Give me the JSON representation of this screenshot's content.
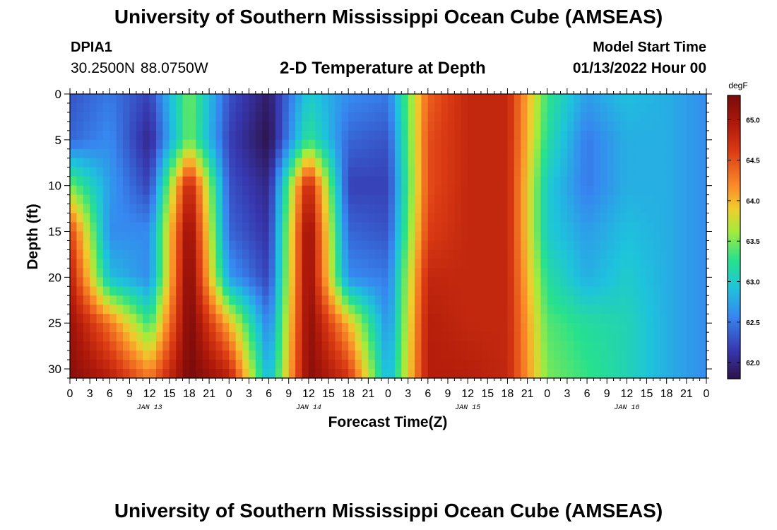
{
  "header": {
    "title": "University of Southern Mississippi Ocean Cube (AMSEAS)",
    "station": "DPIA1",
    "coordinates": "30.2500N  88.0750W",
    "subtitle": "2-D Temperature at Depth",
    "model_start_label": "Model Start Time",
    "model_start_value": "01/13/2022 Hour 00"
  },
  "footer": {
    "title": "University of Southern Mississippi Ocean Cube (AMSEAS)"
  },
  "chart_data": {
    "type": "heatmap",
    "title": "2-D Temperature at Depth",
    "xlabel": "Forecast Time(Z)",
    "ylabel": "Depth (ft)",
    "x_range_hours": [
      0,
      96
    ],
    "x_tick_step_hours": 3,
    "x_tick_labels": [
      "0",
      "3",
      "6",
      "9",
      "12",
      "15",
      "18",
      "21",
      "0",
      "3",
      "6",
      "9",
      "12",
      "15",
      "18",
      "21",
      "0",
      "3",
      "6",
      "9",
      "12",
      "15",
      "18",
      "21",
      "0",
      "3",
      "6",
      "9",
      "12",
      "15",
      "18",
      "21",
      "0"
    ],
    "day_labels": [
      {
        "label": "JAN 13",
        "hour": 12
      },
      {
        "label": "JAN 14",
        "hour": 36
      },
      {
        "label": "JAN 15",
        "hour": 60
      },
      {
        "label": "JAN 16",
        "hour": 84
      }
    ],
    "ylim": [
      0,
      31
    ],
    "y_ticks": [
      0,
      5,
      10,
      15,
      20,
      25,
      30
    ],
    "colorbar": {
      "unit": "degF",
      "range": [
        61.8,
        65.3
      ],
      "ticks": [
        62.0,
        62.5,
        63.0,
        63.5,
        64.0,
        64.5,
        65.0
      ]
    },
    "depth_levels_ft": [
      0,
      5,
      10,
      15,
      20,
      25,
      31
    ],
    "time_hours": [
      0,
      6,
      12,
      18,
      24,
      30,
      36,
      42,
      48,
      54,
      60,
      66,
      72,
      78,
      84,
      90,
      96
    ],
    "temperature_degF": [
      [
        62.3,
        62.5,
        62.2,
        63.5,
        62.3,
        61.9,
        63.0,
        62.6,
        62.5,
        64.4,
        64.8,
        64.8,
        63.3,
        62.7,
        62.9,
        62.8,
        62.6
      ],
      [
        62.4,
        62.6,
        62.0,
        63.5,
        62.2,
        61.8,
        63.3,
        62.4,
        62.3,
        64.5,
        64.8,
        64.8,
        63.2,
        62.5,
        62.8,
        62.8,
        62.6
      ],
      [
        63.5,
        62.7,
        62.2,
        64.9,
        62.3,
        62.0,
        64.9,
        62.2,
        62.2,
        64.5,
        64.8,
        64.8,
        63.0,
        62.5,
        62.8,
        62.8,
        62.6
      ],
      [
        64.6,
        62.6,
        62.6,
        65.2,
        62.4,
        62.1,
        65.2,
        62.4,
        62.3,
        64.6,
        64.8,
        64.8,
        63.0,
        62.7,
        62.9,
        62.8,
        62.6
      ],
      [
        64.9,
        62.9,
        62.6,
        65.3,
        62.7,
        62.2,
        65.2,
        62.6,
        62.5,
        64.8,
        64.8,
        64.8,
        63.2,
        62.8,
        63.0,
        62.8,
        62.6
      ],
      [
        65.1,
        64.3,
        63.3,
        65.3,
        64.0,
        62.5,
        65.2,
        64.0,
        62.6,
        64.9,
        64.8,
        64.8,
        63.4,
        63.2,
        63.1,
        62.8,
        62.6
      ],
      [
        65.2,
        64.9,
        64.3,
        65.3,
        64.9,
        62.8,
        65.2,
        64.7,
        62.8,
        64.9,
        64.9,
        64.8,
        63.5,
        63.3,
        63.1,
        62.8,
        62.6
      ]
    ]
  }
}
